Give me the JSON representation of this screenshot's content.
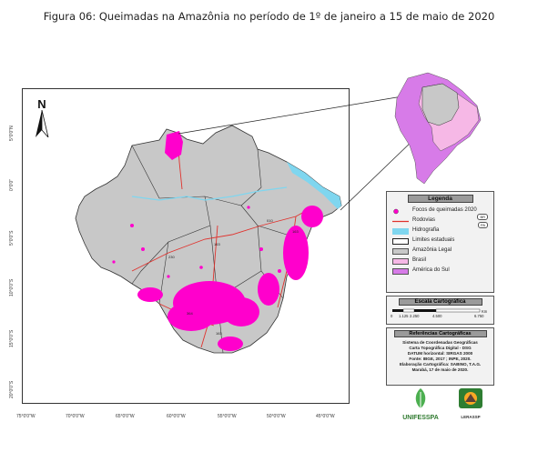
{
  "figure": {
    "title": "Figura 06: Queimadas na Amazônia no período de 1º de janeiro a 15 de maio de 2020"
  },
  "map": {
    "north_letter": "N",
    "lat_labels": [
      "5°0'0\"N",
      "0°0'0\"",
      "5°0'0\"S",
      "10°0'0\"S",
      "15°0'0\"S",
      "20°0'0\"S"
    ],
    "lon_labels": [
      "75°0'0\"W",
      "70°0'0\"W",
      "65°0'0\"W",
      "60°0'0\"W",
      "55°0'0\"W",
      "50°0'0\"W",
      "45°0'0\"W"
    ],
    "road_labels": [
      "163",
      "230",
      "010",
      "364",
      "163",
      "163"
    ],
    "colors": {
      "amazonia_legal": "#c8c8c8",
      "focos": "#ff00cc",
      "rodovias": "#e0322d",
      "hidrografia": "#7fd6ef",
      "brasil": "#f6b8e6",
      "america_do_sul": "#d77be8",
      "limites": "#333333"
    }
  },
  "legend": {
    "title": "Legenda",
    "items": [
      {
        "label": "Focos de queimadas 2020",
        "symbol": "dot"
      },
      {
        "label": "Rodovias",
        "symbol": "line",
        "badges": [
          "BR",
          "PA"
        ]
      },
      {
        "label": "Hidrografia",
        "symbol": "fill-hidro"
      },
      {
        "label": "Limites estaduais",
        "symbol": "outline"
      },
      {
        "label": "Amazônia Legal",
        "symbol": "fill-amazonia"
      },
      {
        "label": "Brasil",
        "symbol": "fill-brasil"
      },
      {
        "label": "América do Sul",
        "symbol": "fill-as"
      }
    ]
  },
  "scale": {
    "title": "Escala Cartográfica",
    "ticks": [
      "0",
      "1.125",
      "2.250",
      "4.500",
      "6.750"
    ],
    "unit": "Km"
  },
  "references": {
    "title": "Referências Cartográficas",
    "lines": [
      "Sistema de Coordenadas Geográficas",
      "Carta Topográfica Digital - DSG",
      "DATUM horizontal: SIRGAS 2000",
      "Fonte: IBGE, 2017 ; INPE, 2020.",
      "Elaboração Cartográfica: SABINO, T.A.G.",
      "Marabá, 17 de maio de 2020."
    ]
  },
  "logos": {
    "unifesspa": "UNIFESSPA",
    "lerassp": "LERASSP"
  }
}
